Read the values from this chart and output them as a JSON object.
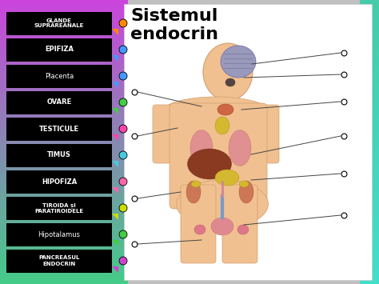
{
  "title": "Sistemul\nendocrin",
  "labels": [
    {
      "text": "GLANDE\nSUPRAREANALE",
      "dot_color": "#ff8800",
      "font_size": 5.0,
      "bold": true
    },
    {
      "text": "EPIFIZA",
      "dot_color": "#4499ff",
      "font_size": 6.0,
      "bold": true
    },
    {
      "text": "Placenta",
      "dot_color": "#4499ff",
      "font_size": 6.0,
      "bold": false
    },
    {
      "text": "OVARE",
      "dot_color": "#44cc44",
      "font_size": 6.0,
      "bold": true
    },
    {
      "text": "TESTICULE",
      "dot_color": "#ff44aa",
      "font_size": 6.0,
      "bold": true
    },
    {
      "text": "TIMUS",
      "dot_color": "#44ccdd",
      "font_size": 6.0,
      "bold": true
    },
    {
      "text": "HIPOFIZA",
      "dot_color": "#ff66aa",
      "font_size": 6.0,
      "bold": true
    },
    {
      "text": "TIROIDA și\nPARATIROIDELE",
      "dot_color": "#ccdd00",
      "font_size": 5.0,
      "bold": true
    },
    {
      "text": "Hipotalamus",
      "dot_color": "#44cc44",
      "font_size": 6.0,
      "bold": false
    },
    {
      "text": "PANCREASUL\nENDOCRIN",
      "dot_color": "#cc44cc",
      "font_size": 5.0,
      "bold": true
    }
  ],
  "label_box_color": "#000000",
  "label_text_color": "#ffffff",
  "bg_color": "#e8e8e8",
  "white_panel_bg": "#ffffff",
  "body_skin": "#f0c090",
  "body_skin_dark": "#d4a070",
  "brain_color": "#a0a0c0",
  "organ_red": "#cc6644",
  "organ_brown": "#7a3c1e",
  "organ_yellow": "#d4b830",
  "organ_pink": "#e88899",
  "organ_blue": "#6688cc",
  "line_color": "#444444"
}
